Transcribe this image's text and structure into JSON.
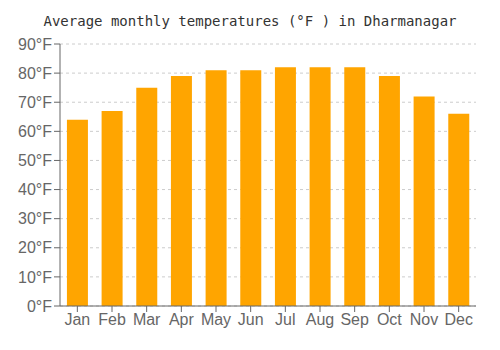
{
  "chart_data": {
    "type": "bar",
    "title": "Average monthly temperatures (°F ) in Dharmanagar",
    "categories": [
      "Jan",
      "Feb",
      "Mar",
      "Apr",
      "May",
      "Jun",
      "Jul",
      "Aug",
      "Sep",
      "Oct",
      "Nov",
      "Dec"
    ],
    "values": [
      64,
      67,
      75,
      79,
      81,
      81,
      82,
      82,
      82,
      79,
      72,
      66
    ],
    "color": "#FFA500",
    "ylim": [
      0,
      90
    ],
    "yticks": [
      {
        "value": 0,
        "label": "0°F"
      },
      {
        "value": 10,
        "label": "10°F"
      },
      {
        "value": 20,
        "label": "20°F"
      },
      {
        "value": 30,
        "label": "30°F"
      },
      {
        "value": 40,
        "label": "40°F"
      },
      {
        "value": 50,
        "label": "50°F"
      },
      {
        "value": 60,
        "label": "60°F"
      },
      {
        "value": 70,
        "label": "70°F"
      },
      {
        "value": 80,
        "label": "80°F"
      },
      {
        "value": 90,
        "label": "90°F"
      }
    ],
    "grid": true
  }
}
